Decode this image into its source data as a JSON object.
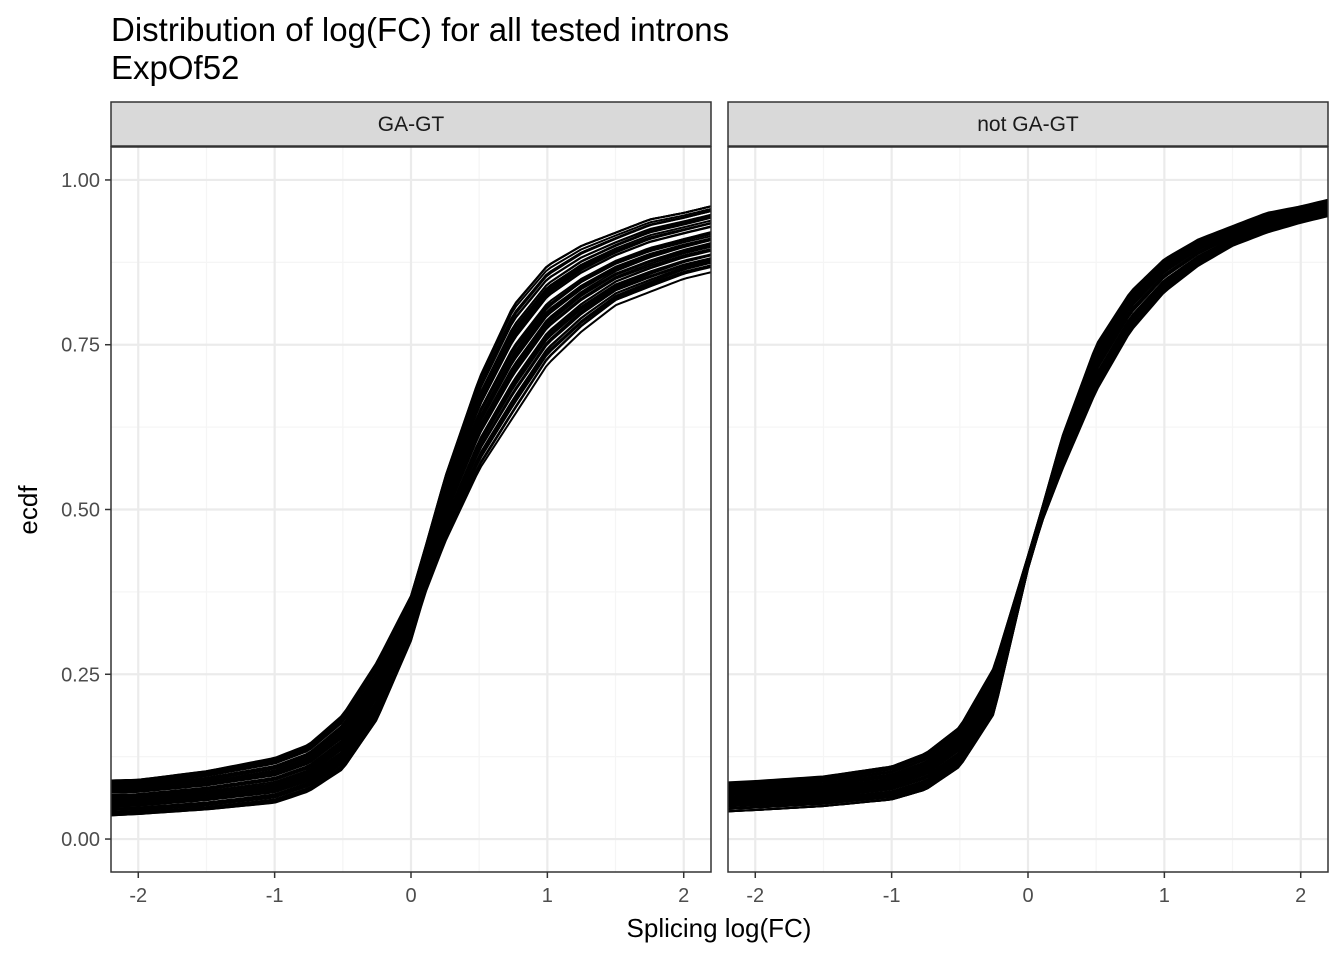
{
  "chart_data": {
    "type": "line",
    "title": "Distribution of log(FC) for all tested introns",
    "subtitle": "ExpOf52",
    "xlabel": "Splicing log(FC)",
    "ylabel": "ecdf",
    "xlim": [
      -2.2,
      2.2
    ],
    "ylim": [
      -0.05,
      1.05
    ],
    "x_ticks": [
      -2,
      -1,
      0,
      1,
      2
    ],
    "x_tick_labels": [
      "-2",
      "-1",
      "0",
      "1",
      "2"
    ],
    "y_ticks": [
      0,
      0.25,
      0.5,
      0.75,
      1
    ],
    "y_tick_labels": [
      "0.00",
      "0.25",
      "0.50",
      "0.75",
      "1.00"
    ],
    "grid": true,
    "panels": [
      {
        "label": "GA-GT",
        "series_count": 52,
        "envelope_low": {
          "x": [
            -2.2,
            -2.0,
            -1.5,
            -1.0,
            -0.75,
            -0.5,
            -0.25,
            0.0,
            0.1,
            0.25,
            0.5,
            0.75,
            1.0,
            1.25,
            1.5,
            1.75,
            2.0,
            2.2
          ],
          "y": [
            0.036,
            0.038,
            0.045,
            0.055,
            0.072,
            0.105,
            0.18,
            0.3,
            0.37,
            0.45,
            0.56,
            0.64,
            0.72,
            0.77,
            0.81,
            0.83,
            0.85,
            0.86
          ]
        },
        "envelope_high": {
          "x": [
            -2.2,
            -2.0,
            -1.5,
            -1.0,
            -0.75,
            -0.5,
            -0.25,
            0.0,
            0.1,
            0.25,
            0.5,
            0.75,
            1.0,
            1.25,
            1.5,
            1.75,
            2.0,
            2.2
          ],
          "y": [
            0.091,
            0.092,
            0.105,
            0.125,
            0.145,
            0.19,
            0.27,
            0.37,
            0.44,
            0.55,
            0.7,
            0.81,
            0.87,
            0.9,
            0.92,
            0.94,
            0.95,
            0.96
          ]
        }
      },
      {
        "label": "not GA-GT",
        "series_count": 52,
        "envelope_low": {
          "x": [
            -2.2,
            -2.0,
            -1.5,
            -1.0,
            -0.75,
            -0.5,
            -0.25,
            0.0,
            0.1,
            0.25,
            0.5,
            0.75,
            1.0,
            1.25,
            1.5,
            1.75,
            2.0,
            2.2
          ],
          "y": [
            0.042,
            0.044,
            0.05,
            0.06,
            0.075,
            0.11,
            0.19,
            0.41,
            0.48,
            0.56,
            0.68,
            0.77,
            0.83,
            0.87,
            0.9,
            0.92,
            0.935,
            0.945
          ]
        },
        "envelope_high": {
          "x": [
            -2.2,
            -2.0,
            -1.5,
            -1.0,
            -0.75,
            -0.5,
            -0.25,
            0.0,
            0.1,
            0.25,
            0.5,
            0.75,
            1.0,
            1.25,
            1.5,
            1.75,
            2.0,
            2.2
          ],
          "y": [
            0.086,
            0.088,
            0.095,
            0.11,
            0.13,
            0.17,
            0.26,
            0.43,
            0.5,
            0.61,
            0.75,
            0.83,
            0.88,
            0.91,
            0.93,
            0.95,
            0.96,
            0.97
          ]
        }
      }
    ]
  },
  "colors": {
    "line": "#000000",
    "panel_border": "#333333",
    "strip_fill": "#d9d9d9",
    "grid_major": "#ebebeb",
    "grid_minor": "#f5f5f5",
    "tick": "#333333"
  }
}
